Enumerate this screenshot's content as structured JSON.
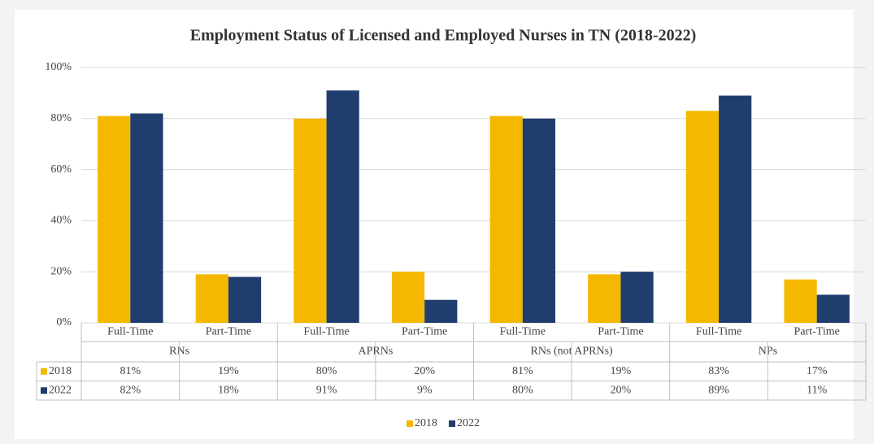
{
  "chart_data": {
    "type": "bar",
    "title": "Employment Status of Licensed and Employed Nurses in TN (2018-2022)",
    "categories": [
      "Full-Time",
      "Part-Time",
      "Full-Time",
      "Part-Time",
      "Full-Time",
      "Part-Time",
      "Full-Time",
      "Part-Time"
    ],
    "groups": [
      "RNs",
      "APRNs",
      "RNs (not APRNs)",
      "NPs"
    ],
    "series": [
      {
        "name": "2018",
        "color": "#f5b800",
        "values": [
          81,
          19,
          80,
          20,
          81,
          19,
          83,
          17
        ],
        "value_labels": [
          "81%",
          "19%",
          "80%",
          "20%",
          "81%",
          "19%",
          "83%",
          "17%"
        ]
      },
      {
        "name": "2022",
        "color": "#1f3e6e",
        "values": [
          82,
          18,
          91,
          9,
          80,
          20,
          89,
          11
        ],
        "value_labels": [
          "82%",
          "18%",
          "91%",
          "9%",
          "80%",
          "20%",
          "89%",
          "11%"
        ]
      }
    ],
    "ylim": [
      0,
      100
    ],
    "yticks": [
      {
        "value": 0,
        "label": "0%"
      },
      {
        "value": 20,
        "label": "20%"
      },
      {
        "value": 40,
        "label": "40%"
      },
      {
        "value": 60,
        "label": "60%"
      },
      {
        "value": 80,
        "label": "80%"
      },
      {
        "value": 100,
        "label": "100%"
      }
    ],
    "grid": true,
    "legend": "bottom"
  }
}
